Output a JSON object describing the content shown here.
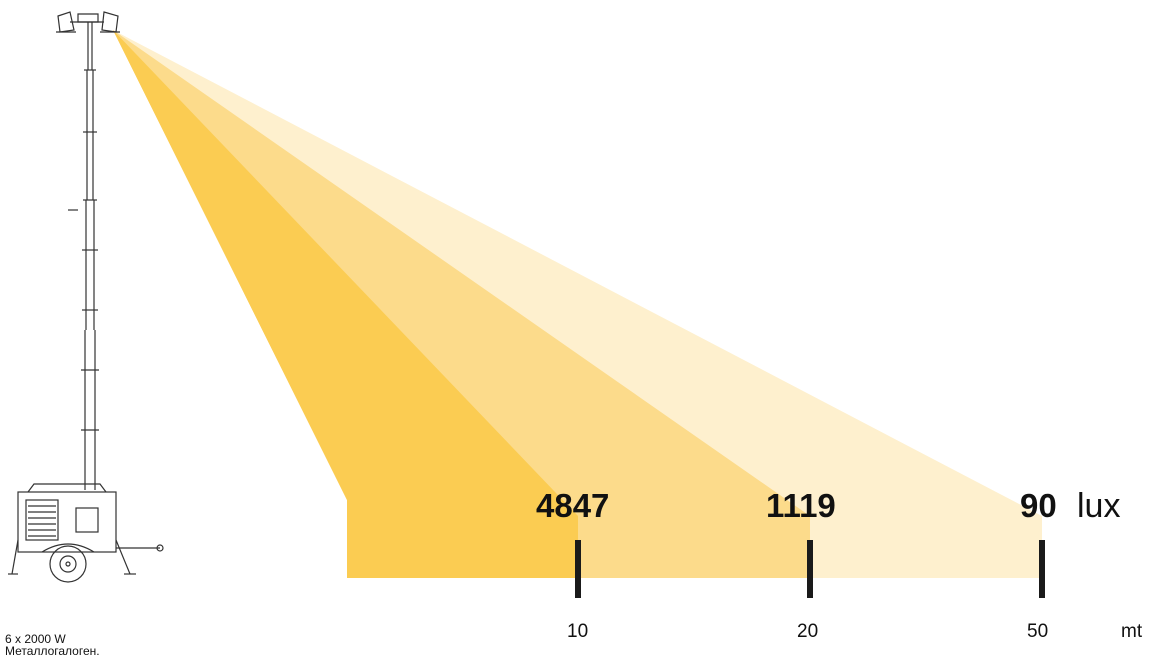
{
  "lux": {
    "values": [
      "4847",
      "1119",
      "90"
    ],
    "unit": "lux"
  },
  "distance": {
    "values": [
      "10",
      "20",
      "50"
    ],
    "unit": "mt"
  },
  "specs": {
    "power": "6 x 2000 W",
    "lamp_type": "Металлогалоген."
  },
  "colors": {
    "beam_near": "#FBCC52",
    "beam_mid": "#FCDB8B",
    "beam_far": "#FEF0CE",
    "tick": "#1a1a1a"
  },
  "icons": {
    "tower": "lighting-tower-trailer-icon"
  }
}
